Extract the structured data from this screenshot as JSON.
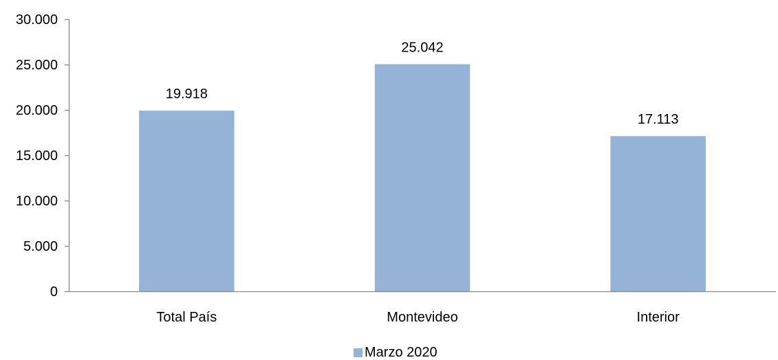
{
  "chart_data": {
    "type": "bar",
    "categories": [
      "Total País",
      "Montevideo",
      "Interior"
    ],
    "series": [
      {
        "name": "Marzo 2020",
        "values": [
          19918,
          25042,
          17113
        ],
        "value_labels": [
          "19.918",
          "25.042",
          "17.113"
        ],
        "color": "#95B3D7"
      }
    ],
    "ylim": [
      0,
      30000
    ],
    "yticks": [
      0,
      5000,
      10000,
      15000,
      20000,
      25000,
      30000
    ],
    "ytick_labels": [
      "0",
      "5.000",
      "10.000",
      "15.000",
      "20.000",
      "25.000",
      "30.000"
    ],
    "grid": false,
    "legend_position": "bottom-center",
    "axis_color": "#868686"
  }
}
